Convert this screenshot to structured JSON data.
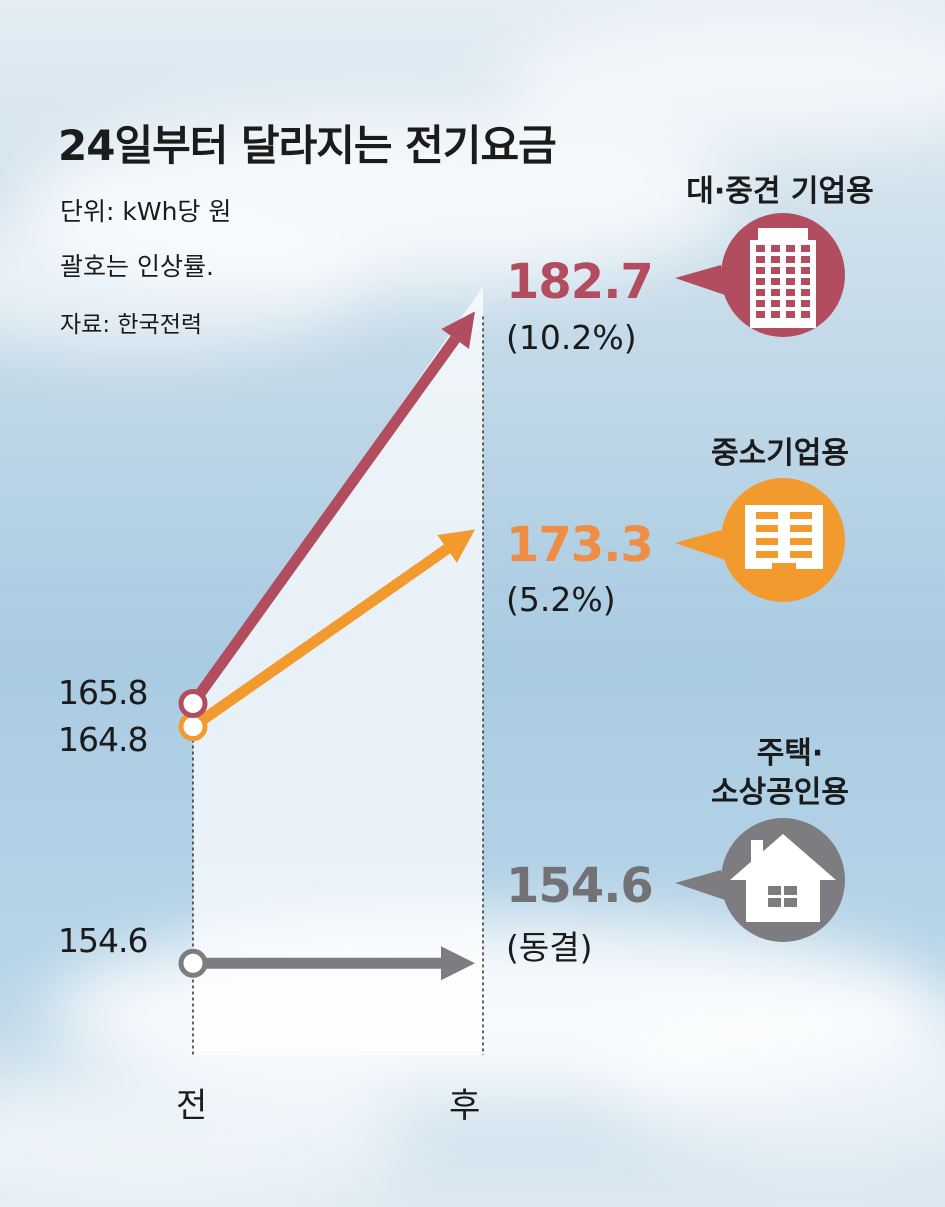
{
  "chart_data": {
    "type": "line",
    "title": "24일부터 달라지는 전기요금",
    "notes": [
      "단위: kWh당 원",
      "괄호는 인상률.",
      "자료: 한국전력"
    ],
    "categories": [
      "전",
      "후"
    ],
    "series": [
      {
        "name": "대·중견 기업용",
        "values": [
          165.8,
          182.7
        ],
        "change": "(10.2%)",
        "color": "#b14d5f",
        "icon": "office-building-icon"
      },
      {
        "name": "중소기업용",
        "values": [
          164.8,
          173.3
        ],
        "change": "(5.2%)",
        "color": "#f39a2e",
        "icon": "small-building-icon"
      },
      {
        "name_lines": [
          "주택·",
          "소상공인용"
        ],
        "values": [
          154.6,
          154.6
        ],
        "change": "(동결)",
        "color": "#7d7c80",
        "icon": "house-icon"
      }
    ],
    "value_colors": [
      "#b14d5f",
      "#ef8d45",
      "#727175"
    ],
    "grid": false,
    "legend": "none"
  }
}
